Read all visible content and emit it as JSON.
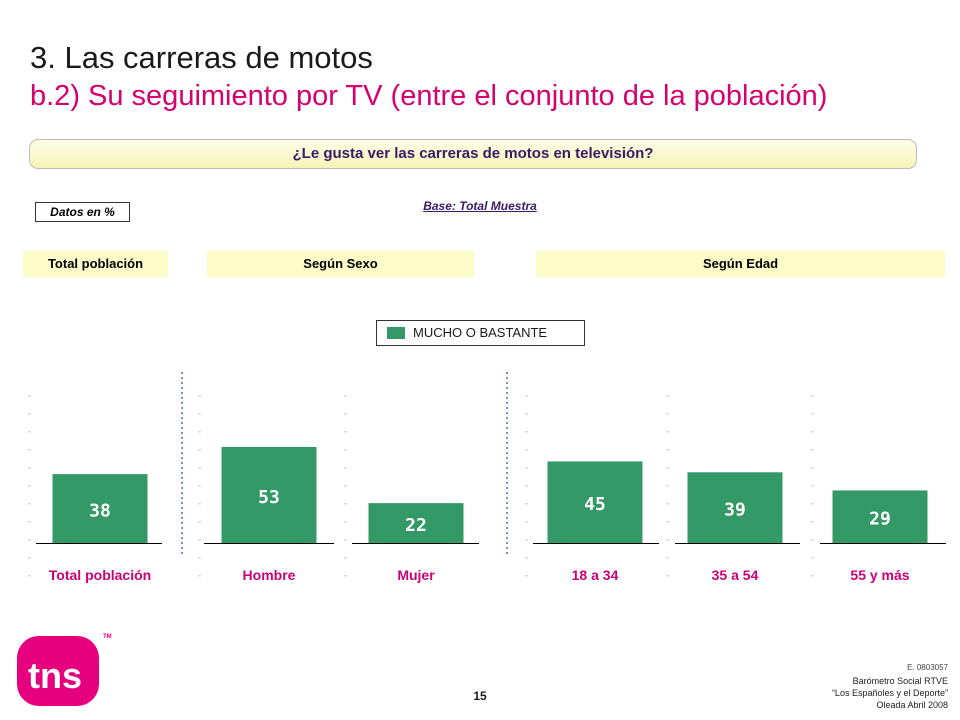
{
  "slide": {
    "title": "3. Las carreras de motos",
    "subtitle": "b.2) Su seguimiento por TV (entre el conjunto de la población)",
    "question": "¿Le gusta ver las carreras de motos en televisión?",
    "units_note": "Datos en %",
    "base_note": "Base: Total Muestra",
    "groups": [
      "Total población",
      "Según Sexo",
      "Según Edad"
    ],
    "page_number": "15",
    "footer": {
      "code": "E. 0803057",
      "report": "Barómetro Social RTVE",
      "subtitle": "“Los Españoles y el Deporte”",
      "wave": "Oleada Abril 2008"
    },
    "logo_text": "tns",
    "logo_mark": "TM"
  },
  "chart_data": {
    "type": "bar",
    "categories": [
      "Total población",
      "Hombre",
      "Mujer",
      "18 a 34",
      "35 a 54",
      "55 y más"
    ],
    "series": [
      {
        "name": "MUCHO O BASTANTE",
        "values": [
          38,
          53,
          22,
          45,
          39,
          29
        ],
        "color": "#339966"
      }
    ],
    "ylim": [
      0,
      80
    ],
    "grid": false,
    "legend_position": "top-center",
    "category_label_color": "#cc0077",
    "data_label_color": "#ffffff"
  }
}
